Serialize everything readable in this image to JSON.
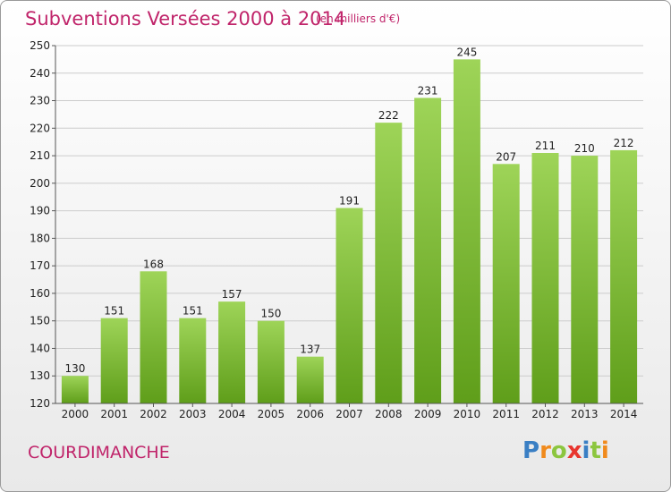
{
  "title": "Subventions Versées 2000 à 2014",
  "subtitle": "(en milliers d'€)",
  "commune": "COURDIMANCHE",
  "logo": {
    "letters": [
      "P",
      "r",
      "o",
      "x",
      "i",
      "t",
      "i"
    ],
    "colors": [
      "#3a7fc4",
      "#f08a1c",
      "#8cc63f",
      "#e8352e",
      "#3a7fc4",
      "#8cc63f",
      "#f08a1c"
    ]
  },
  "colors": {
    "bar_top": "#9ed458",
    "bar_bottom": "#5f9e1a",
    "accent": "#c0246a",
    "grid": "#cccccc"
  },
  "chart_data": {
    "type": "bar",
    "categories": [
      "2000",
      "2001",
      "2002",
      "2003",
      "2004",
      "2005",
      "2006",
      "2007",
      "2008",
      "2009",
      "2010",
      "2011",
      "2012",
      "2013",
      "2014"
    ],
    "values": [
      130,
      151,
      168,
      151,
      157,
      150,
      137,
      191,
      222,
      231,
      245,
      207,
      211,
      210,
      212
    ],
    "ylim": [
      120,
      250
    ],
    "yticks": [
      120,
      130,
      140,
      150,
      160,
      170,
      180,
      190,
      200,
      210,
      220,
      230,
      240,
      250
    ],
    "grid": true,
    "title": "Subventions Versées 2000 à 2014",
    "xlabel": "",
    "ylabel": ""
  }
}
